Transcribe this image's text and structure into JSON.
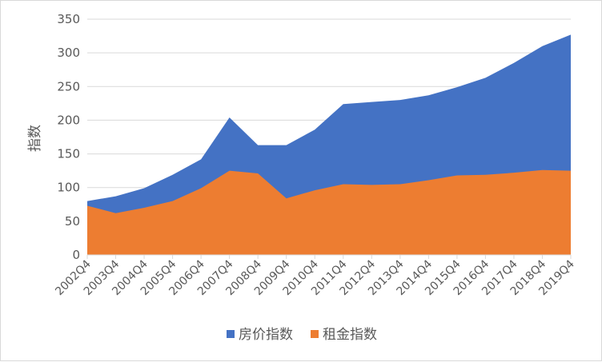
{
  "chart_data": {
    "type": "area",
    "ylabel": "指数",
    "ylim": [
      0,
      350
    ],
    "yticks": [
      0,
      50,
      100,
      150,
      200,
      250,
      300,
      350
    ],
    "grid": true,
    "legend_position": "bottom",
    "categories": [
      "2002Q4",
      "2003Q4",
      "2004Q4",
      "2005Q4",
      "2006Q4",
      "2007Q4",
      "2008Q4",
      "2009Q4",
      "2010Q4",
      "2011Q4",
      "2012Q4",
      "2013Q4",
      "2014Q4",
      "2015Q4",
      "2016Q4",
      "2017Q4",
      "2018Q4",
      "2019Q4"
    ],
    "series": [
      {
        "name": "房价指数",
        "color": "#4472C4",
        "values": [
          80,
          87,
          99,
          119,
          142,
          204,
          163,
          163,
          186,
          224,
          227,
          230,
          237,
          249,
          263,
          285,
          310,
          327
        ]
      },
      {
        "name": "租金指数",
        "color": "#ED7D31",
        "values": [
          73,
          62,
          70,
          80,
          99,
          125,
          121,
          84,
          96,
          105,
          104,
          105,
          111,
          118,
          119,
          122,
          126,
          125
        ]
      }
    ]
  }
}
